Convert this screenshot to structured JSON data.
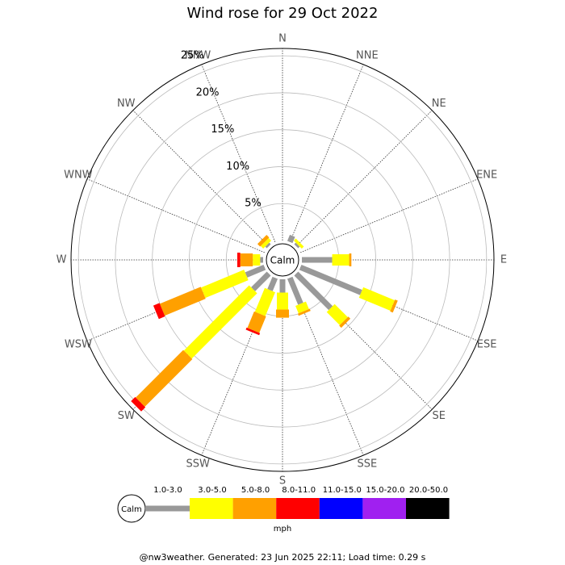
{
  "chart_data": {
    "type": "windrose",
    "title": "Wind rose for 29 Oct 2022",
    "calm_label": "Calm",
    "unit_label": "mph",
    "footer": "@nw3weather. Generated: 23 Jun 2025 22:11; Load time: 0.29 s",
    "categories": [
      "N",
      "NNE",
      "NE",
      "ENE",
      "E",
      "ESE",
      "SE",
      "SSE",
      "S",
      "SSW",
      "SW",
      "WSW",
      "W",
      "WNW",
      "NW",
      "NNW"
    ],
    "rlim": [
      0,
      26
    ],
    "rticks": [
      {
        "value": 5,
        "label": "5%"
      },
      {
        "value": 10,
        "label": "10%"
      },
      {
        "value": 15,
        "label": "15%"
      },
      {
        "value": 20,
        "label": "20%"
      },
      {
        "value": 25,
        "label": "25%"
      }
    ],
    "series": [
      {
        "name": "1.0-3.0",
        "color": "#999999",
        "values": [
          0,
          0.9,
          0.3,
          0,
          4.1,
          8.9,
          6.6,
          3.8,
          1.8,
          1.8,
          3,
          2.7,
          0.4,
          0,
          0.3,
          0
        ]
      },
      {
        "name": "3.0-5.0",
        "color": "#ffff00",
        "values": [
          0,
          0,
          0.4,
          0,
          2.3,
          4.6,
          2.5,
          1.1,
          2.3,
          3.5,
          12.5,
          6.3,
          1.0,
          0,
          0.5,
          0
        ]
      },
      {
        "name": "5.0-8.0",
        "color": "#ffa000",
        "values": [
          0,
          0,
          0,
          0,
          0.3,
          0.4,
          0.4,
          0.3,
          1.1,
          2.4,
          9.1,
          6,
          1.7,
          0,
          0.5,
          0
        ]
      },
      {
        "name": "8.0-11.0",
        "color": "#ff0000",
        "values": [
          0,
          0,
          0,
          0,
          0,
          0,
          0,
          0,
          0,
          0.3,
          0.8,
          0.9,
          0.4,
          0,
          0,
          0
        ]
      },
      {
        "name": "11.0-15.0",
        "color": "#0000ff",
        "values": [
          0,
          0,
          0,
          0,
          0,
          0,
          0,
          0,
          0,
          0,
          0,
          0,
          0,
          0,
          0,
          0
        ]
      },
      {
        "name": "15.0-20.0",
        "color": "#a020f0",
        "values": [
          0,
          0,
          0,
          0,
          0,
          0,
          0,
          0,
          0,
          0,
          0,
          0,
          0,
          0,
          0,
          0
        ]
      },
      {
        "name": "20.0-50.0",
        "color": "#000000",
        "values": [
          0,
          0,
          0,
          0,
          0,
          0,
          0,
          0,
          0,
          0,
          0,
          0,
          0,
          0,
          0,
          0
        ]
      }
    ]
  }
}
